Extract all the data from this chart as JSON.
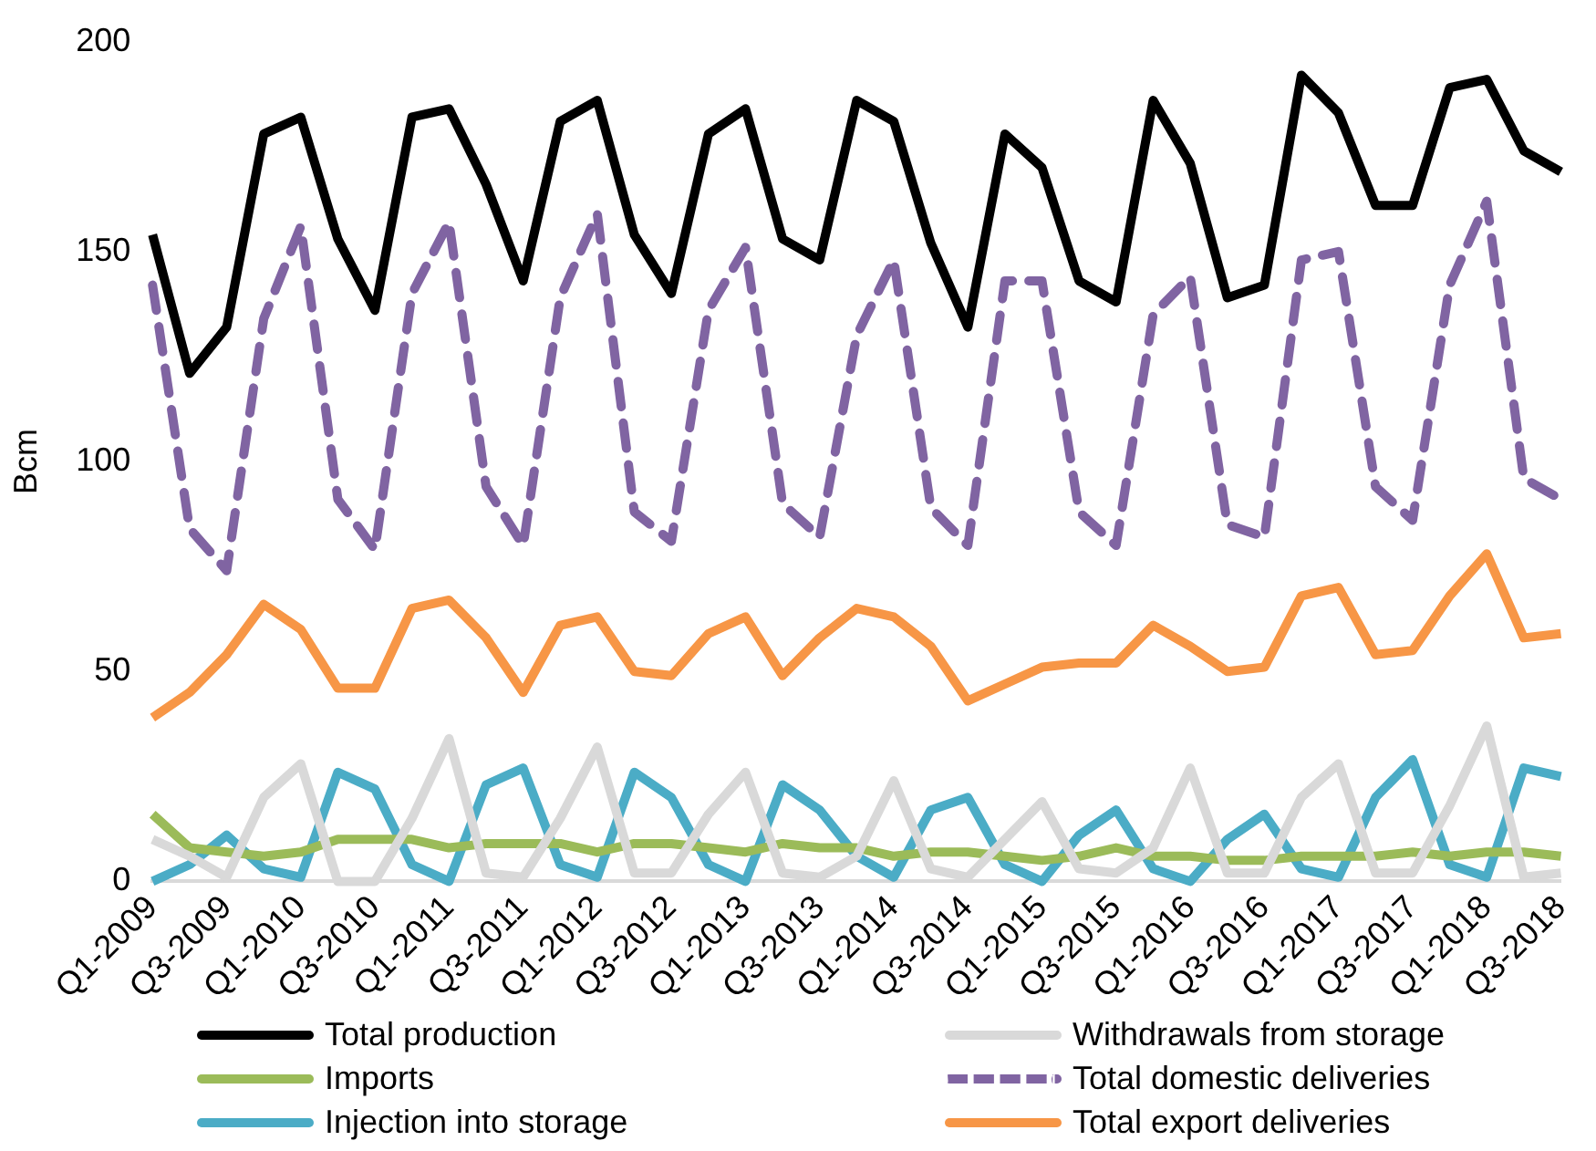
{
  "chart_data": {
    "type": "line",
    "ylabel": "Bcm",
    "categories": [
      "Q1-2009",
      null,
      "Q3-2009",
      null,
      "Q1-2010",
      null,
      "Q3-2010",
      null,
      "Q1-2011",
      null,
      "Q3-2011",
      null,
      "Q1-2012",
      null,
      "Q3-2012",
      null,
      "Q1-2013",
      null,
      "Q3-2013",
      null,
      "Q1-2014",
      null,
      "Q3-2014",
      null,
      "Q1-2015",
      null,
      "Q3-2015",
      null,
      "Q1-2016",
      null,
      "Q3-2016",
      null,
      "Q1-2017",
      null,
      "Q3-2017",
      null,
      "Q1-2018",
      null,
      "Q3-2018"
    ],
    "series": [
      {
        "name": "Total production",
        "color": "#000000",
        "values": [
          154,
          121,
          132,
          178,
          182,
          153,
          136,
          182,
          184,
          166,
          143,
          181,
          186,
          154,
          140,
          178,
          184,
          153,
          148,
          186,
          181,
          152,
          132,
          178,
          170,
          143,
          138,
          186,
          171,
          139,
          142,
          192,
          183,
          161,
          161,
          189,
          191,
          174,
          169
        ]
      },
      {
        "name": "Withdrawals from storage",
        "color": "#d9d9d9",
        "values": [
          10,
          6,
          1,
          20,
          28,
          0,
          0,
          15,
          34,
          2,
          1,
          15,
          32,
          2,
          2,
          16,
          26,
          2,
          1,
          6,
          24,
          3,
          1,
          10,
          19,
          3,
          2,
          8,
          27,
          2,
          2,
          20,
          28,
          2,
          2,
          18,
          37,
          1,
          2
        ]
      },
      {
        "name": "Imports",
        "color": "#9bbb59",
        "values": [
          16,
          8,
          7,
          6,
          7,
          10,
          10,
          10,
          8,
          9,
          9,
          9,
          7,
          9,
          9,
          8,
          7,
          9,
          8,
          8,
          6,
          7,
          7,
          6,
          5,
          6,
          8,
          6,
          6,
          5,
          5,
          6,
          6,
          6,
          7,
          6,
          7,
          7,
          6
        ]
      },
      {
        "name": "Total domestic deliveries",
        "color": "#8064a2",
        "line_style": "dashed",
        "values": [
          142,
          84,
          74,
          134,
          156,
          91,
          79,
          140,
          157,
          94,
          80,
          139,
          159,
          88,
          81,
          136,
          151,
          90,
          82,
          130,
          148,
          89,
          80,
          143,
          143,
          88,
          80,
          135,
          144,
          85,
          82,
          148,
          150,
          94,
          86,
          142,
          162,
          96,
          91
        ]
      },
      {
        "name": "Injection into storage",
        "color": "#4bacc6",
        "values": [
          0,
          4,
          11,
          3,
          1,
          26,
          22,
          4,
          0,
          23,
          27,
          4,
          1,
          26,
          20,
          4,
          0,
          23,
          17,
          6,
          1,
          17,
          20,
          4,
          0,
          11,
          17,
          3,
          0,
          10,
          16,
          3,
          1,
          20,
          29,
          4,
          1,
          27,
          25
        ]
      },
      {
        "name": "Total export deliveries",
        "color": "#f79646",
        "values": [
          39,
          45,
          54,
          66,
          60,
          46,
          46,
          65,
          67,
          58,
          45,
          61,
          63,
          50,
          49,
          59,
          63,
          49,
          58,
          65,
          63,
          56,
          43,
          47,
          51,
          52,
          52,
          61,
          56,
          50,
          51,
          68,
          70,
          54,
          55,
          68,
          78,
          58,
          59
        ]
      }
    ],
    "ylim": [
      0,
      200
    ],
    "yticks": [
      0,
      50,
      100,
      150,
      200
    ],
    "grid": false,
    "legend": "bottom",
    "marker": "none",
    "line_style": "solid"
  }
}
